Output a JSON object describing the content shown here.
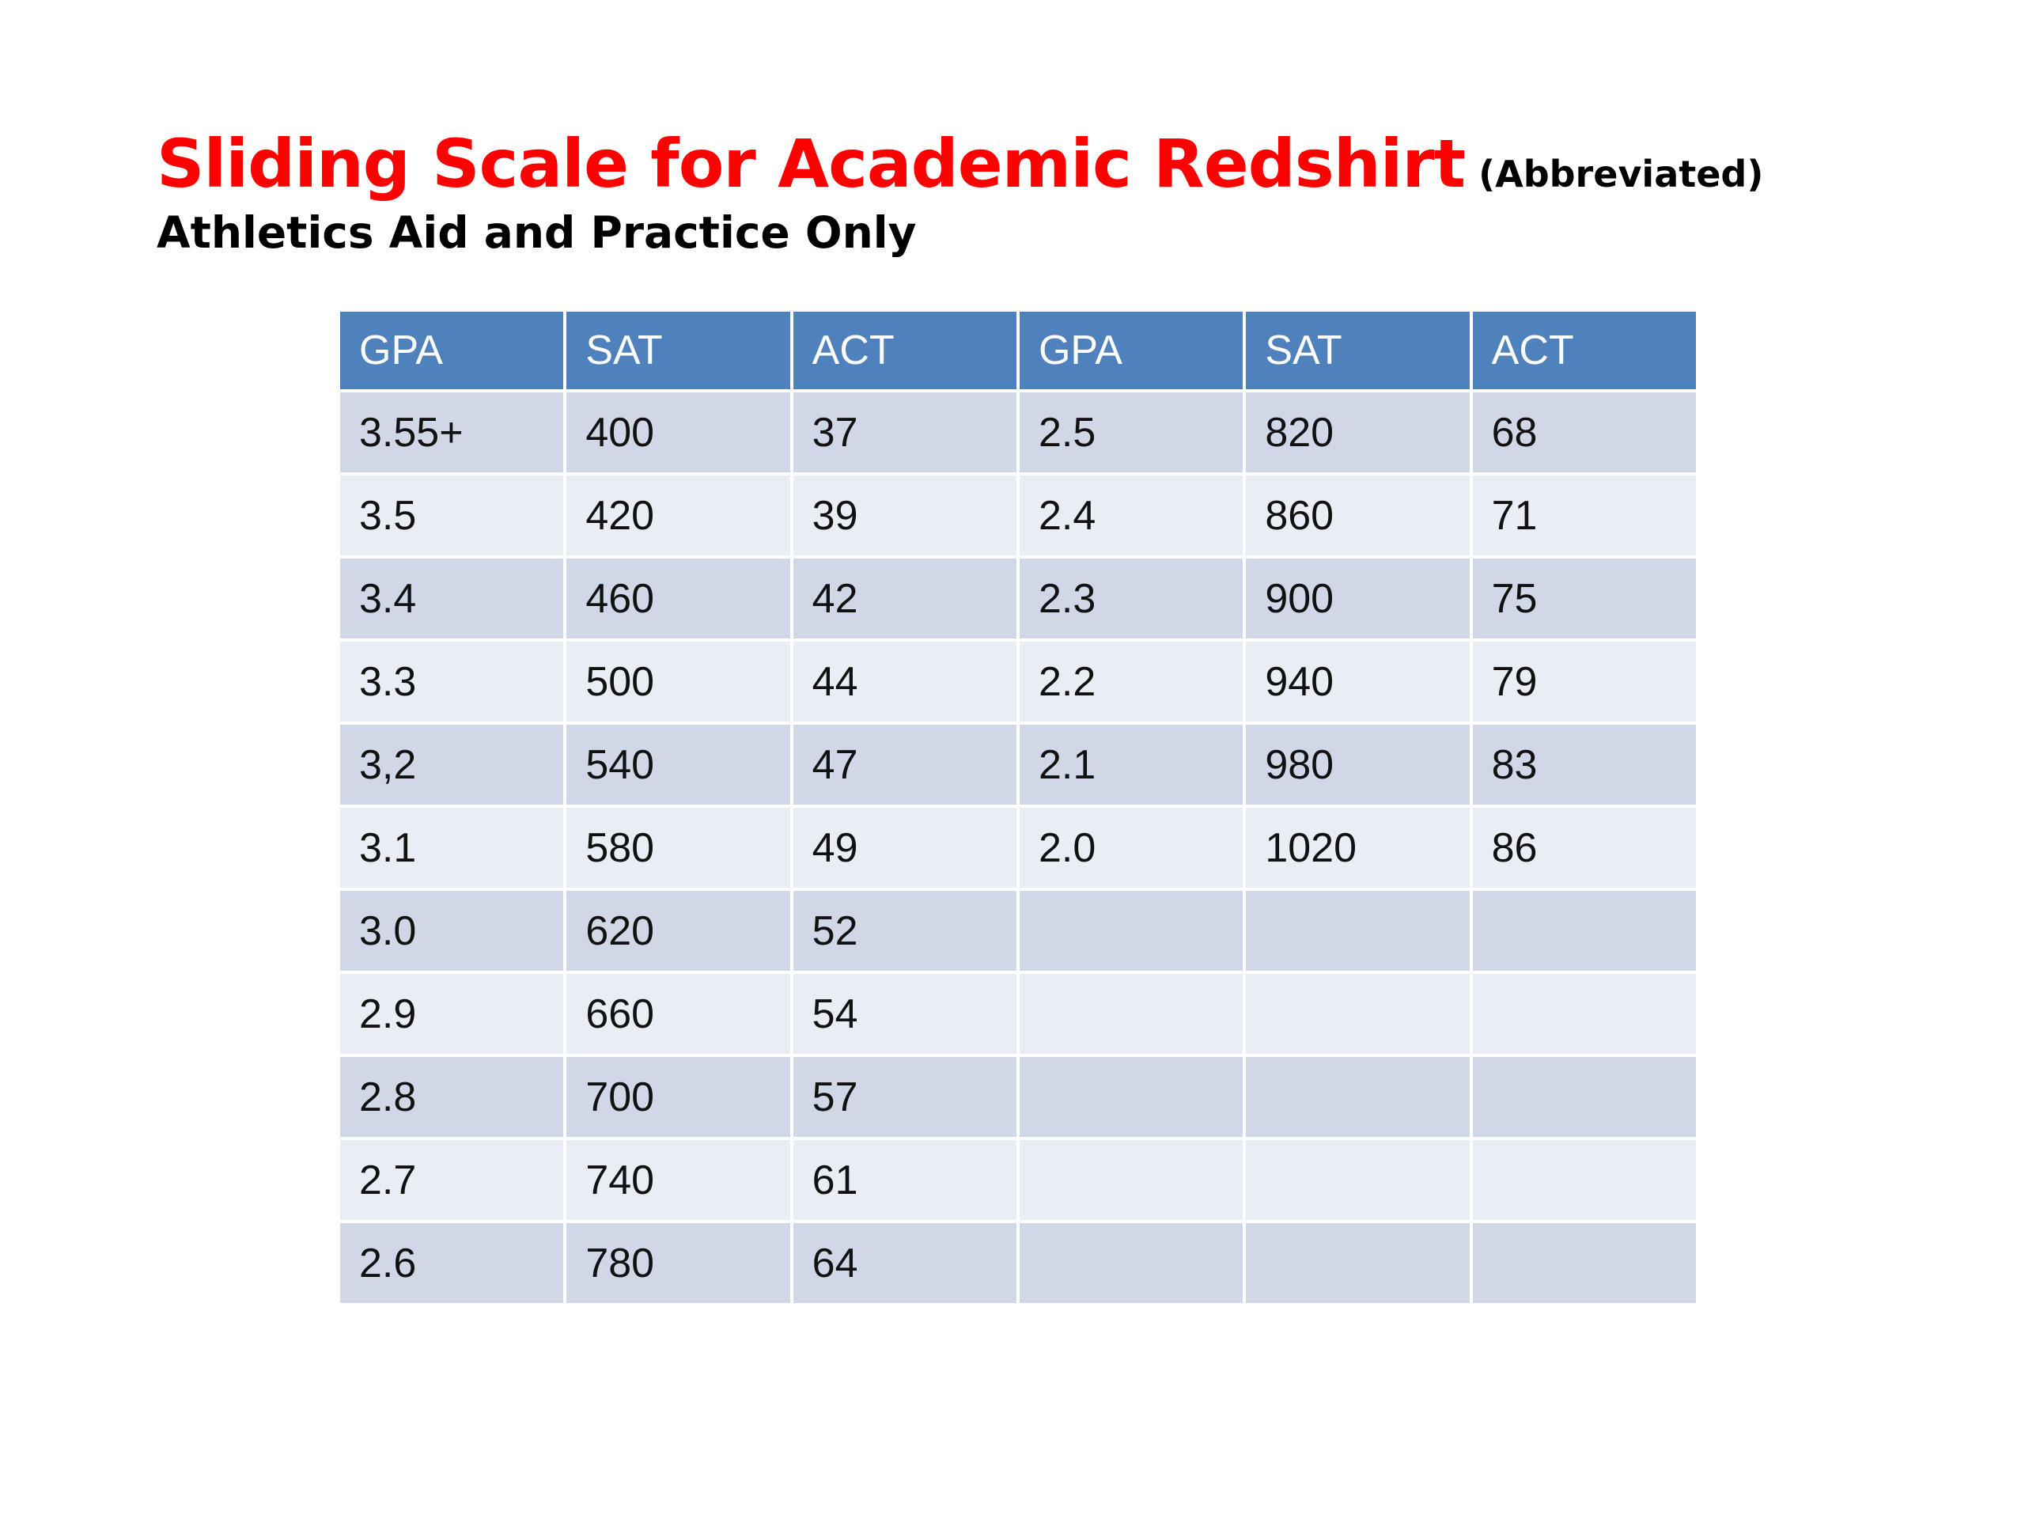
{
  "slide": {
    "title": "Sliding Scale for Academic Redshirt",
    "title_note": "(Abbreviated)",
    "subtitle": "Athletics Aid and Practice Only"
  },
  "colors": {
    "title": "#ff0000",
    "header_bg": "#4f81bd",
    "row_dark": "#d0d8e8",
    "row_light": "#e9edf4"
  },
  "table": {
    "headers": [
      "GPA",
      "SAT",
      "ACT",
      "GPA",
      "SAT",
      "ACT"
    ],
    "rows": [
      [
        "3.55+",
        "400",
        "37",
        "2.5",
        "820",
        "68"
      ],
      [
        "3.5",
        "420",
        "39",
        "2.4",
        "860",
        "71"
      ],
      [
        "3.4",
        "460",
        "42",
        "2.3",
        "900",
        "75"
      ],
      [
        "3.3",
        "500",
        "44",
        "2.2",
        "940",
        "79"
      ],
      [
        "3,2",
        "540",
        "47",
        "2.1",
        "980",
        "83"
      ],
      [
        "3.1",
        "580",
        "49",
        "2.0",
        "1020",
        "86"
      ],
      [
        "3.0",
        "620",
        "52",
        "",
        "",
        ""
      ],
      [
        "2.9",
        "660",
        "54",
        "",
        "",
        ""
      ],
      [
        "2.8",
        "700",
        "57",
        "",
        "",
        ""
      ],
      [
        "2.7",
        "740",
        "61",
        "",
        "",
        ""
      ],
      [
        "2.6",
        "780",
        "64",
        "",
        "",
        ""
      ]
    ]
  }
}
